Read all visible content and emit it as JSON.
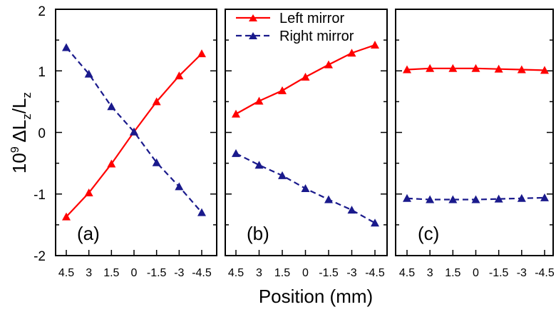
{
  "chart_data": {
    "type": "line",
    "xlabel": "Position (mm)",
    "ylabel": {
      "base": "10",
      "exp": "9",
      "delta": "ΔL",
      "sub1": "z",
      "slash": "/L",
      "sub2": "z"
    },
    "ylim": [
      -2,
      2
    ],
    "yticks": [
      "2",
      "1",
      "0",
      "-1",
      "-2"
    ],
    "xticks": [
      "4.5",
      "3",
      "1.5",
      "0",
      "-1.5",
      "-3",
      "-4.5"
    ],
    "x": [
      4.5,
      3,
      1.5,
      0,
      -1.5,
      -3,
      -4.5
    ],
    "colors": {
      "left": "#ff0000",
      "right": "#1a1a8c"
    },
    "legend": {
      "placement": "top",
      "left": "Left mirror",
      "right": "Right mirror"
    },
    "panels": [
      {
        "label": "(a)",
        "series": [
          {
            "name": "Left mirror",
            "values": [
              -1.37,
              -0.98,
              -0.51,
              0.01,
              0.5,
              0.92,
              1.28
            ]
          },
          {
            "name": "Right mirror",
            "values": [
              1.38,
              0.95,
              0.42,
              0.01,
              -0.49,
              -0.88,
              -1.3
            ]
          }
        ]
      },
      {
        "label": "(b)",
        "series": [
          {
            "name": "Left mirror",
            "values": [
              0.3,
              0.51,
              0.68,
              0.9,
              1.1,
              1.29,
              1.42
            ]
          },
          {
            "name": "Right mirror",
            "values": [
              -0.34,
              -0.53,
              -0.7,
              -0.91,
              -1.09,
              -1.26,
              -1.47
            ]
          }
        ]
      },
      {
        "label": "(c)",
        "series": [
          {
            "name": "Left mirror",
            "values": [
              1.02,
              1.04,
              1.04,
              1.04,
              1.03,
              1.02,
              1.01
            ]
          },
          {
            "name": "Right mirror",
            "values": [
              -1.07,
              -1.09,
              -1.09,
              -1.09,
              -1.08,
              -1.07,
              -1.06
            ]
          }
        ]
      }
    ]
  }
}
